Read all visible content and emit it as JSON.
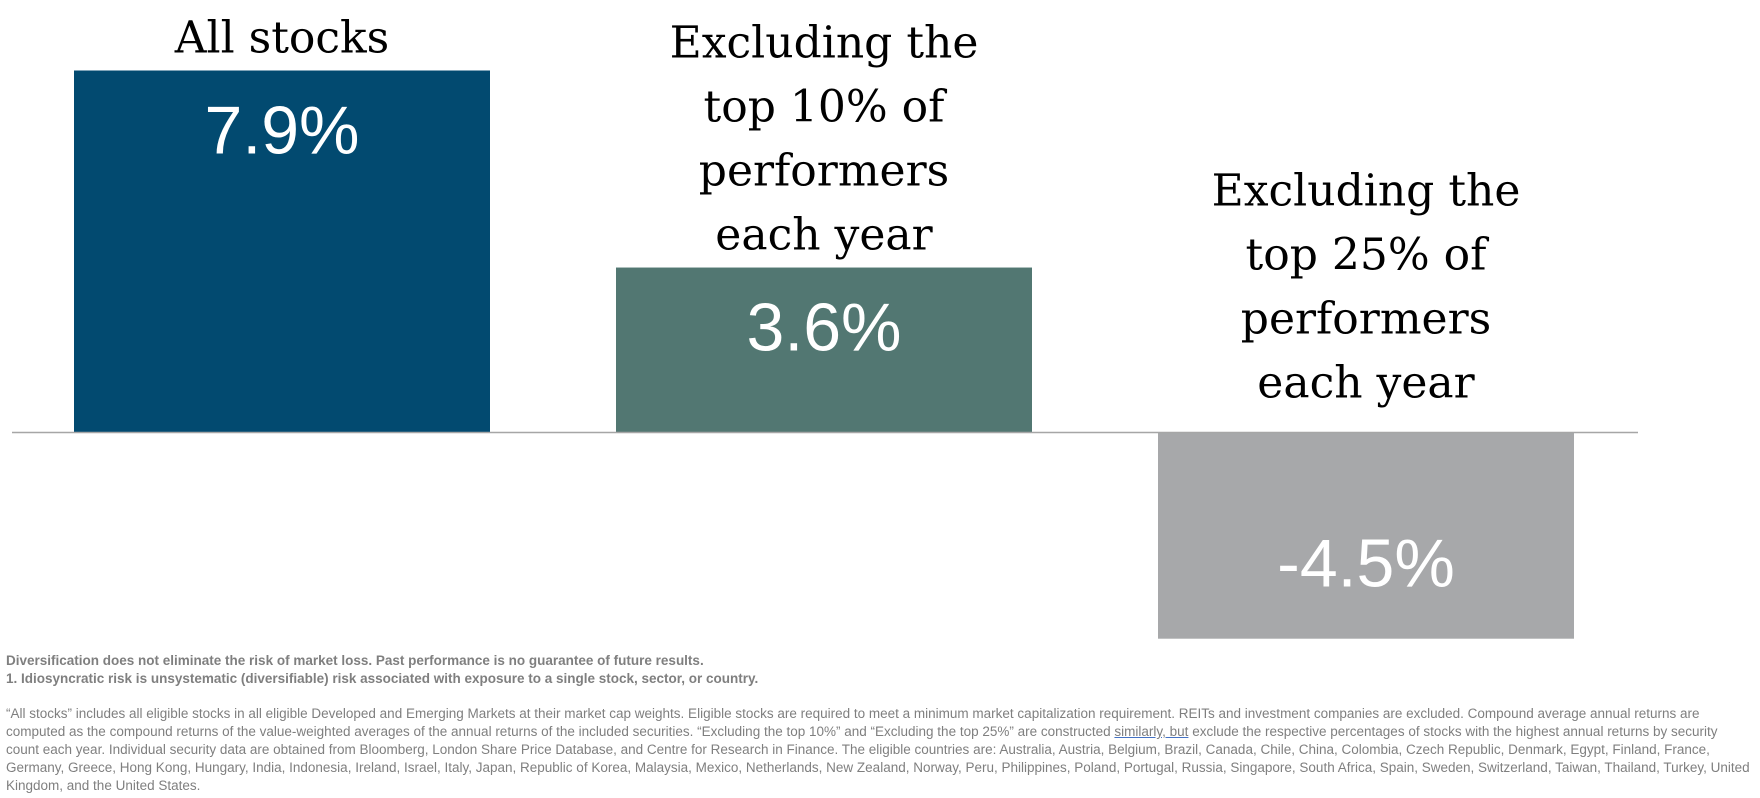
{
  "chart_data": {
    "type": "bar",
    "categories": [
      "All stocks",
      "Excluding the top 10% of performers each year",
      "Excluding the top 25% of performers each year"
    ],
    "category_lines": [
      [
        "All stocks"
      ],
      [
        "Excluding the",
        "top 10% of",
        "performers",
        "each year"
      ],
      [
        "Excluding the",
        "top 25% of",
        "performers",
        "each year"
      ]
    ],
    "values": [
      7.9,
      3.6,
      -4.5
    ],
    "value_labels": [
      "7.9%",
      "3.6%",
      "-4.5%"
    ],
    "colors": [
      "#024a70",
      "#527772",
      "#a7a8aa"
    ],
    "ylim": [
      -4.5,
      7.9
    ],
    "grid": false,
    "legend": "none",
    "baseline_color": "#a6a6a6"
  },
  "notes": {
    "disclaimer": "Diversification does not eliminate the risk of market loss. Past performance is no guarantee of future results.",
    "footnote": "1. Idiosyncratic risk is unsystematic (diversifiable) risk associated with exposure to a single stock, sector, or country.",
    "source_a": "“All stocks” includes all eligible stocks in all eligible Developed and Emerging Markets at their market cap weights. Eligible stocks are required to meet a minimum market capitalization requirement. REITs and investment companies are excluded. Compound average annual returns are computed as the compound returns of the value-weighted averages of the annual returns of the included securities. “Excluding the top 10%” and “Excluding the top 25%” are constructed ",
    "source_underlined": "similarly, but",
    "source_b": " exclude the respective percentages of stocks with the highest annual returns by security count each year. Individual security data are obtained from Bloomberg, London Share Price Database, and Centre for Research in Finance. The eligible countries are: Australia, Austria, Belgium, Brazil, Canada, Chile, China, Colombia, Czech Republic, Denmark, Egypt, Finland, France, Germany, Greece, Hong Kong, Hungary, India, Indonesia, Ireland, Israel, Italy, Japan, Republic of Korea, Malaysia, Mexico, Netherlands, New  Zealand, Norway, Peru, Philippines, Poland, Portugal, Russia, Singapore, South Africa, Spain, Sweden, Switzerland, Taiwan, Thailand, Turkey, United Kingdom, and the United States."
  }
}
